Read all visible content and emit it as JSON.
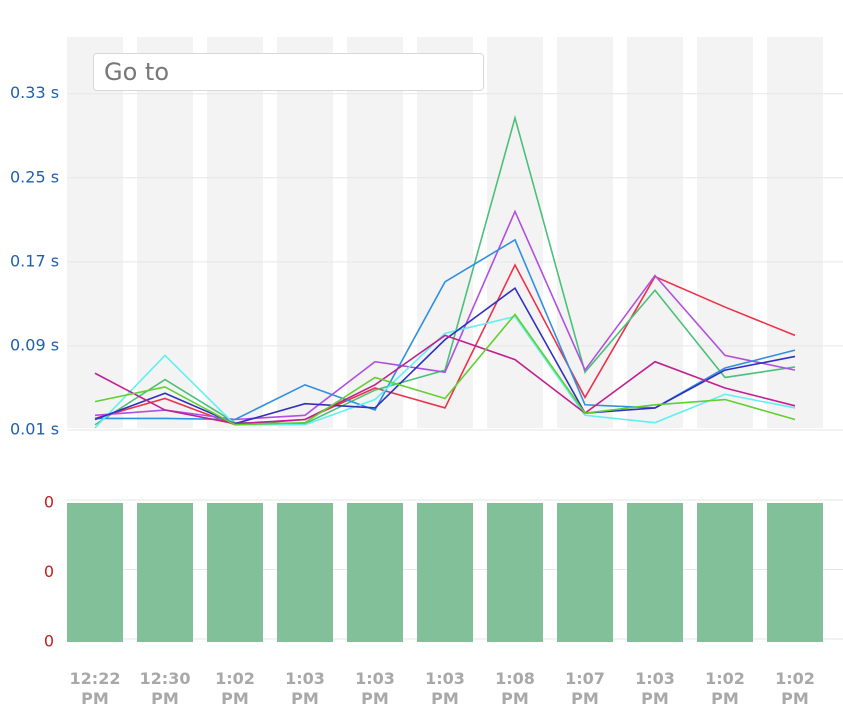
{
  "search": {
    "placeholder": "Go to"
  },
  "chart_data": [
    {
      "type": "line",
      "ylim": [
        0.01,
        0.384
      ],
      "yticks": [
        {
          "value": 0.33,
          "label": "0.33 s"
        },
        {
          "value": 0.25,
          "label": "0.25 s"
        },
        {
          "value": 0.17,
          "label": "0.17 s"
        },
        {
          "value": 0.09,
          "label": "0.09 s"
        },
        {
          "value": 0.01,
          "label": "0.01 s"
        }
      ],
      "grid": true,
      "series": [
        {
          "color": "#f0304a",
          "values": [
            0.021,
            0.04,
            0.015,
            0.02,
            0.05,
            0.031,
            0.167,
            0.041,
            0.156,
            0.127,
            0.1
          ]
        },
        {
          "color": "#4cc07a",
          "values": [
            0.015,
            0.058,
            0.017,
            0.016,
            0.048,
            0.067,
            0.307,
            0.065,
            0.143,
            0.06,
            0.07
          ]
        },
        {
          "color": "#b050e0",
          "values": [
            0.024,
            0.029,
            0.02,
            0.024,
            0.075,
            0.065,
            0.218,
            0.067,
            0.157,
            0.081,
            0.067
          ]
        },
        {
          "color": "#3090e0",
          "values": [
            0.021,
            0.021,
            0.02,
            0.053,
            0.029,
            0.151,
            0.191,
            0.034,
            0.031,
            0.069,
            0.086
          ]
        },
        {
          "color": "#60f0f0",
          "values": [
            0.012,
            0.081,
            0.015,
            0.015,
            0.039,
            0.102,
            0.118,
            0.024,
            0.017,
            0.044,
            0.031
          ]
        },
        {
          "color": "#3030c0",
          "values": [
            0.02,
            0.045,
            0.016,
            0.035,
            0.031,
            0.096,
            0.145,
            0.026,
            0.031,
            0.067,
            0.08
          ]
        },
        {
          "color": "#c02090",
          "values": [
            0.064,
            0.029,
            0.016,
            0.02,
            0.053,
            0.1,
            0.077,
            0.026,
            0.075,
            0.05,
            0.033
          ]
        },
        {
          "color": "#60d030",
          "values": [
            0.037,
            0.051,
            0.015,
            0.017,
            0.06,
            0.04,
            0.12,
            0.026,
            0.034,
            0.039,
            0.02
          ]
        }
      ]
    },
    {
      "type": "bar",
      "categories": [
        "12:22 PM",
        "12:30 PM",
        "1:02 PM",
        "1:03 PM",
        "1:03 PM",
        "1:03 PM",
        "1:08 PM",
        "1:07 PM",
        "1:03 PM",
        "1:02 PM",
        "1:02 PM"
      ],
      "values": [
        0.4,
        0.4,
        0.4,
        0.4,
        0.4,
        0.4,
        0.4,
        0.4,
        0.4,
        0.4,
        0.4
      ],
      "color": "#82c09a",
      "ylim": [
        0,
        0.4
      ],
      "yticks": [
        {
          "value": 0.4,
          "label": "0"
        },
        {
          "value": 0.2,
          "label": "0"
        },
        {
          "value": 0,
          "label": "0"
        }
      ],
      "grid": true
    }
  ]
}
